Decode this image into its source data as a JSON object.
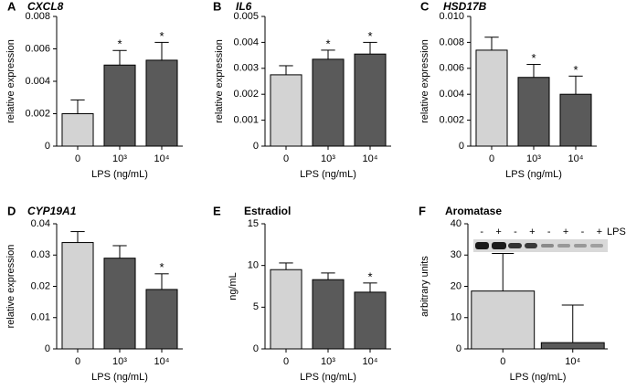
{
  "chart_data": [
    {
      "type": "bar",
      "panel": "A",
      "title": "CXCL8",
      "ylabel": "relative expression",
      "xlabel": "LPS (ng/mL)",
      "categories": [
        "0",
        "10³",
        "10⁴"
      ],
      "values": [
        0.002,
        0.005,
        0.0053
      ],
      "errors": [
        0.00085,
        0.0009,
        0.0011
      ],
      "value_annotations": [
        null,
        "*",
        "*"
      ],
      "colors": [
        "#d3d3d3",
        "#5a5a5a",
        "#5a5a5a"
      ],
      "ylim": [
        0,
        0.008
      ],
      "yticks": [
        0,
        0.002,
        0.004,
        0.006,
        0.008
      ]
    },
    {
      "type": "bar",
      "panel": "B",
      "title": "IL6",
      "ylabel": "relative expression",
      "xlabel": "LPS (ng/mL)",
      "categories": [
        "0",
        "10³",
        "10⁴"
      ],
      "values": [
        0.00275,
        0.00335,
        0.00355
      ],
      "errors": [
        0.00035,
        0.00035,
        0.00045
      ],
      "value_annotations": [
        null,
        "*",
        "*"
      ],
      "colors": [
        "#d3d3d3",
        "#5a5a5a",
        "#5a5a5a"
      ],
      "ylim": [
        0,
        0.005
      ],
      "yticks": [
        0,
        0.001,
        0.002,
        0.003,
        0.004,
        0.005
      ]
    },
    {
      "type": "bar",
      "panel": "C",
      "title": "HSD17B",
      "ylabel": "relative expression",
      "xlabel": "LPS (ng/mL)",
      "categories": [
        "0",
        "10³",
        "10⁴"
      ],
      "values": [
        0.0074,
        0.0053,
        0.004
      ],
      "errors": [
        0.001,
        0.001,
        0.0014
      ],
      "value_annotations": [
        null,
        "*",
        "*"
      ],
      "colors": [
        "#d3d3d3",
        "#5a5a5a",
        "#5a5a5a"
      ],
      "ylim": [
        0,
        0.01
      ],
      "yticks": [
        0,
        0.002,
        0.004,
        0.006,
        0.008,
        {
          "value": 0.01,
          "label": "0.010"
        }
      ]
    },
    {
      "type": "bar",
      "panel": "D",
      "title": "CYP19A1",
      "ylabel": "relative expression",
      "xlabel": "LPS (ng/mL)",
      "categories": [
        "0",
        "10³",
        "10⁴"
      ],
      "values": [
        0.034,
        0.029,
        0.019
      ],
      "errors": [
        0.0035,
        0.004,
        0.005
      ],
      "value_annotations": [
        null,
        null,
        "*"
      ],
      "colors": [
        "#d3d3d3",
        "#5a5a5a",
        "#5a5a5a"
      ],
      "ylim": [
        0,
        0.04
      ],
      "yticks": [
        0,
        0.01,
        0.02,
        0.03,
        0.04
      ]
    },
    {
      "type": "bar",
      "panel": "E",
      "title": "Estradiol",
      "ylabel": "ng/mL",
      "xlabel": "LPS (ng/mL)",
      "categories": [
        "0",
        "10³",
        "10⁴"
      ],
      "values": [
        9.5,
        8.3,
        6.8
      ],
      "errors": [
        0.8,
        0.8,
        1.1
      ],
      "value_annotations": [
        null,
        null,
        "*"
      ],
      "colors": [
        "#d3d3d3",
        "#5a5a5a",
        "#5a5a5a"
      ],
      "ylim": [
        0,
        15
      ],
      "yticks": [
        0,
        5,
        10,
        15
      ]
    },
    {
      "type": "bar",
      "panel": "F",
      "title": "Aromatase",
      "ylabel": "arbitrary units",
      "xlabel": "LPS (ng/mL)",
      "categories": [
        "0",
        "10⁴"
      ],
      "values": [
        18.5,
        2
      ],
      "errors": [
        12,
        12
      ],
      "value_annotations": [
        null,
        null
      ],
      "colors": [
        "#d3d3d3",
        "#5a5a5a"
      ],
      "ylim": [
        0,
        40
      ],
      "yticks": [
        0,
        10,
        20,
        30,
        40
      ],
      "blot_labels": [
        "-",
        "+",
        "-",
        "+",
        "-",
        "+",
        "-",
        "+"
      ],
      "blot_side_label": "LPS"
    }
  ]
}
